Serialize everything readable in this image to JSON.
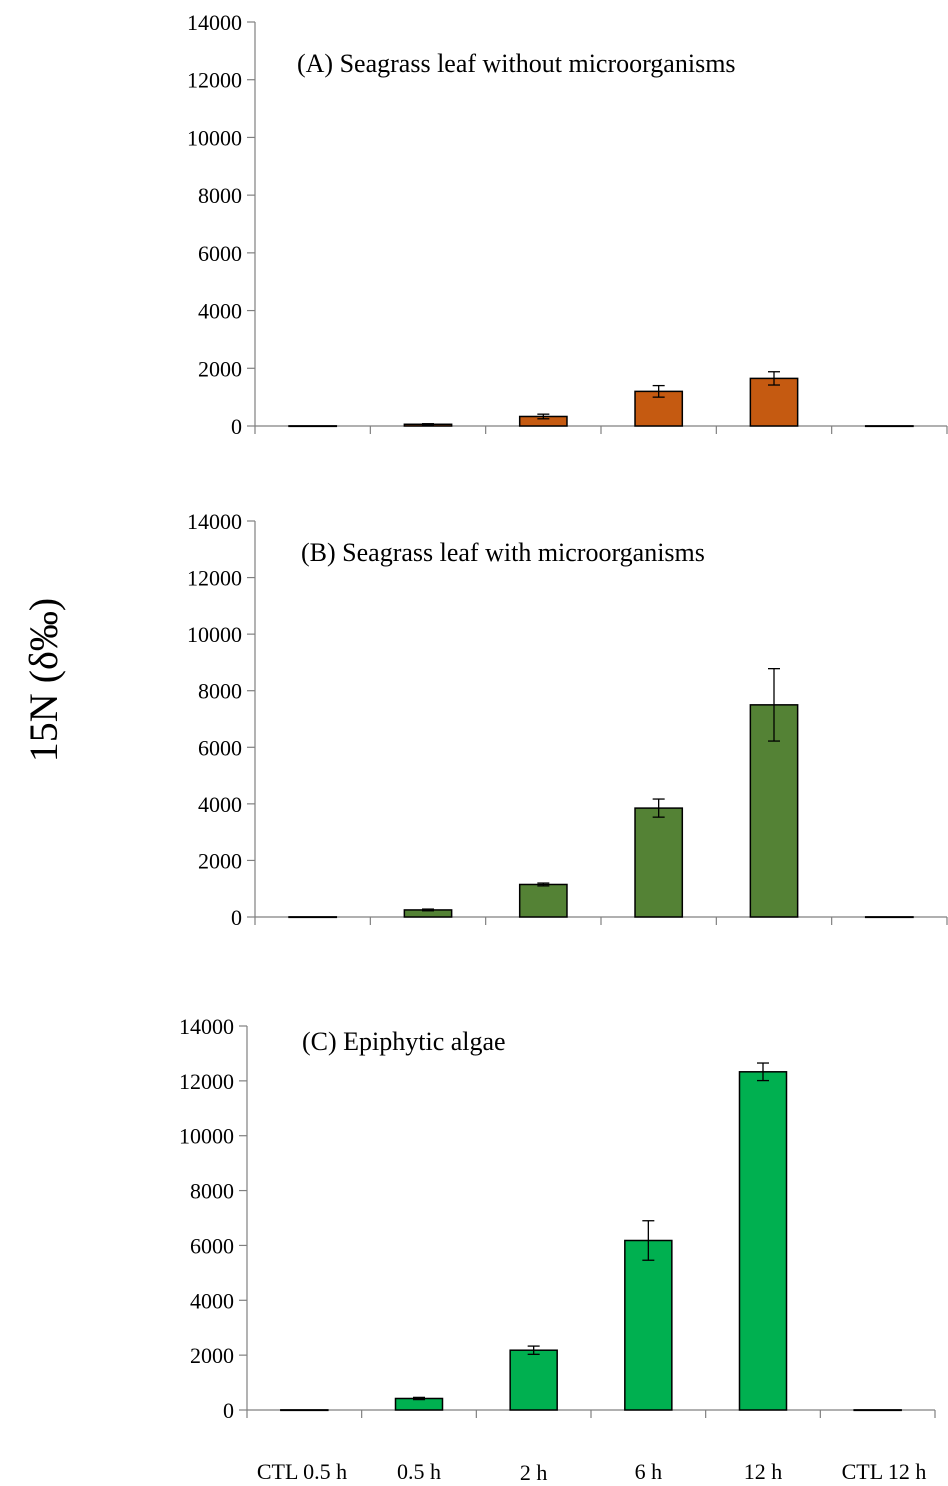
{
  "y_axis_label": "15N (δ‰)",
  "chart_data": [
    {
      "type": "bar",
      "title": "(A) Seagrass leaf without microorganisms",
      "ylim": [
        0,
        14000
      ],
      "yticks": [
        0,
        2000,
        4000,
        6000,
        8000,
        10000,
        12000,
        14000
      ],
      "color": "#C55A11",
      "categories": [
        "CTL 0.5 h",
        "0.5 h",
        "2 h",
        "6 h",
        "12 h",
        "CTL 12 h"
      ],
      "values": [
        5,
        60,
        330,
        1200,
        1650,
        5
      ],
      "errors": [
        0,
        20,
        80,
        200,
        230,
        0
      ]
    },
    {
      "type": "bar",
      "title": "(B) Seagrass leaf with microorganisms",
      "ylim": [
        0,
        14000
      ],
      "yticks": [
        0,
        2000,
        4000,
        6000,
        8000,
        10000,
        12000,
        14000
      ],
      "color": "#548235",
      "categories": [
        "CTL 0.5 h",
        "0.5 h",
        "2 h",
        "6 h",
        "12 h",
        "CTL 12 h"
      ],
      "values": [
        5,
        250,
        1150,
        3850,
        7500,
        5
      ],
      "errors": [
        0,
        30,
        50,
        320,
        1280,
        0
      ]
    },
    {
      "type": "bar",
      "title": "(C) Epiphytic algae",
      "ylim": [
        0,
        14000
      ],
      "yticks": [
        0,
        2000,
        4000,
        6000,
        8000,
        10000,
        12000,
        14000
      ],
      "color": "#00B050",
      "categories": [
        "CTL 0.5 h",
        "0.5 h",
        "2 h",
        "6 h",
        "12 h",
        "CTL 12 h"
      ],
      "values": [
        5,
        420,
        2180,
        6180,
        12330,
        5
      ],
      "errors": [
        0,
        40,
        150,
        720,
        320,
        0
      ]
    }
  ]
}
